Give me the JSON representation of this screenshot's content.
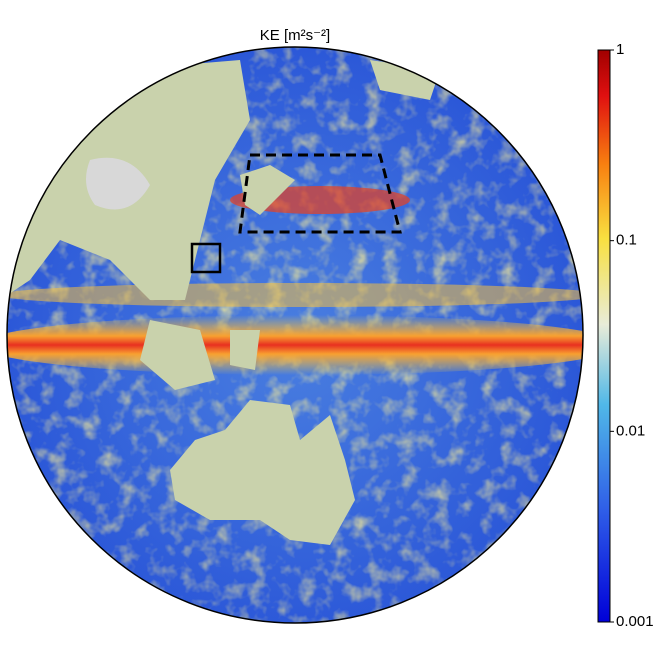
{
  "title": "KE [m²s⁻²]",
  "colorbar": {
    "scale": "log",
    "lim": [
      0.001,
      1
    ],
    "ticks": [
      1,
      0.1,
      0.01,
      0.001
    ]
  }
}
